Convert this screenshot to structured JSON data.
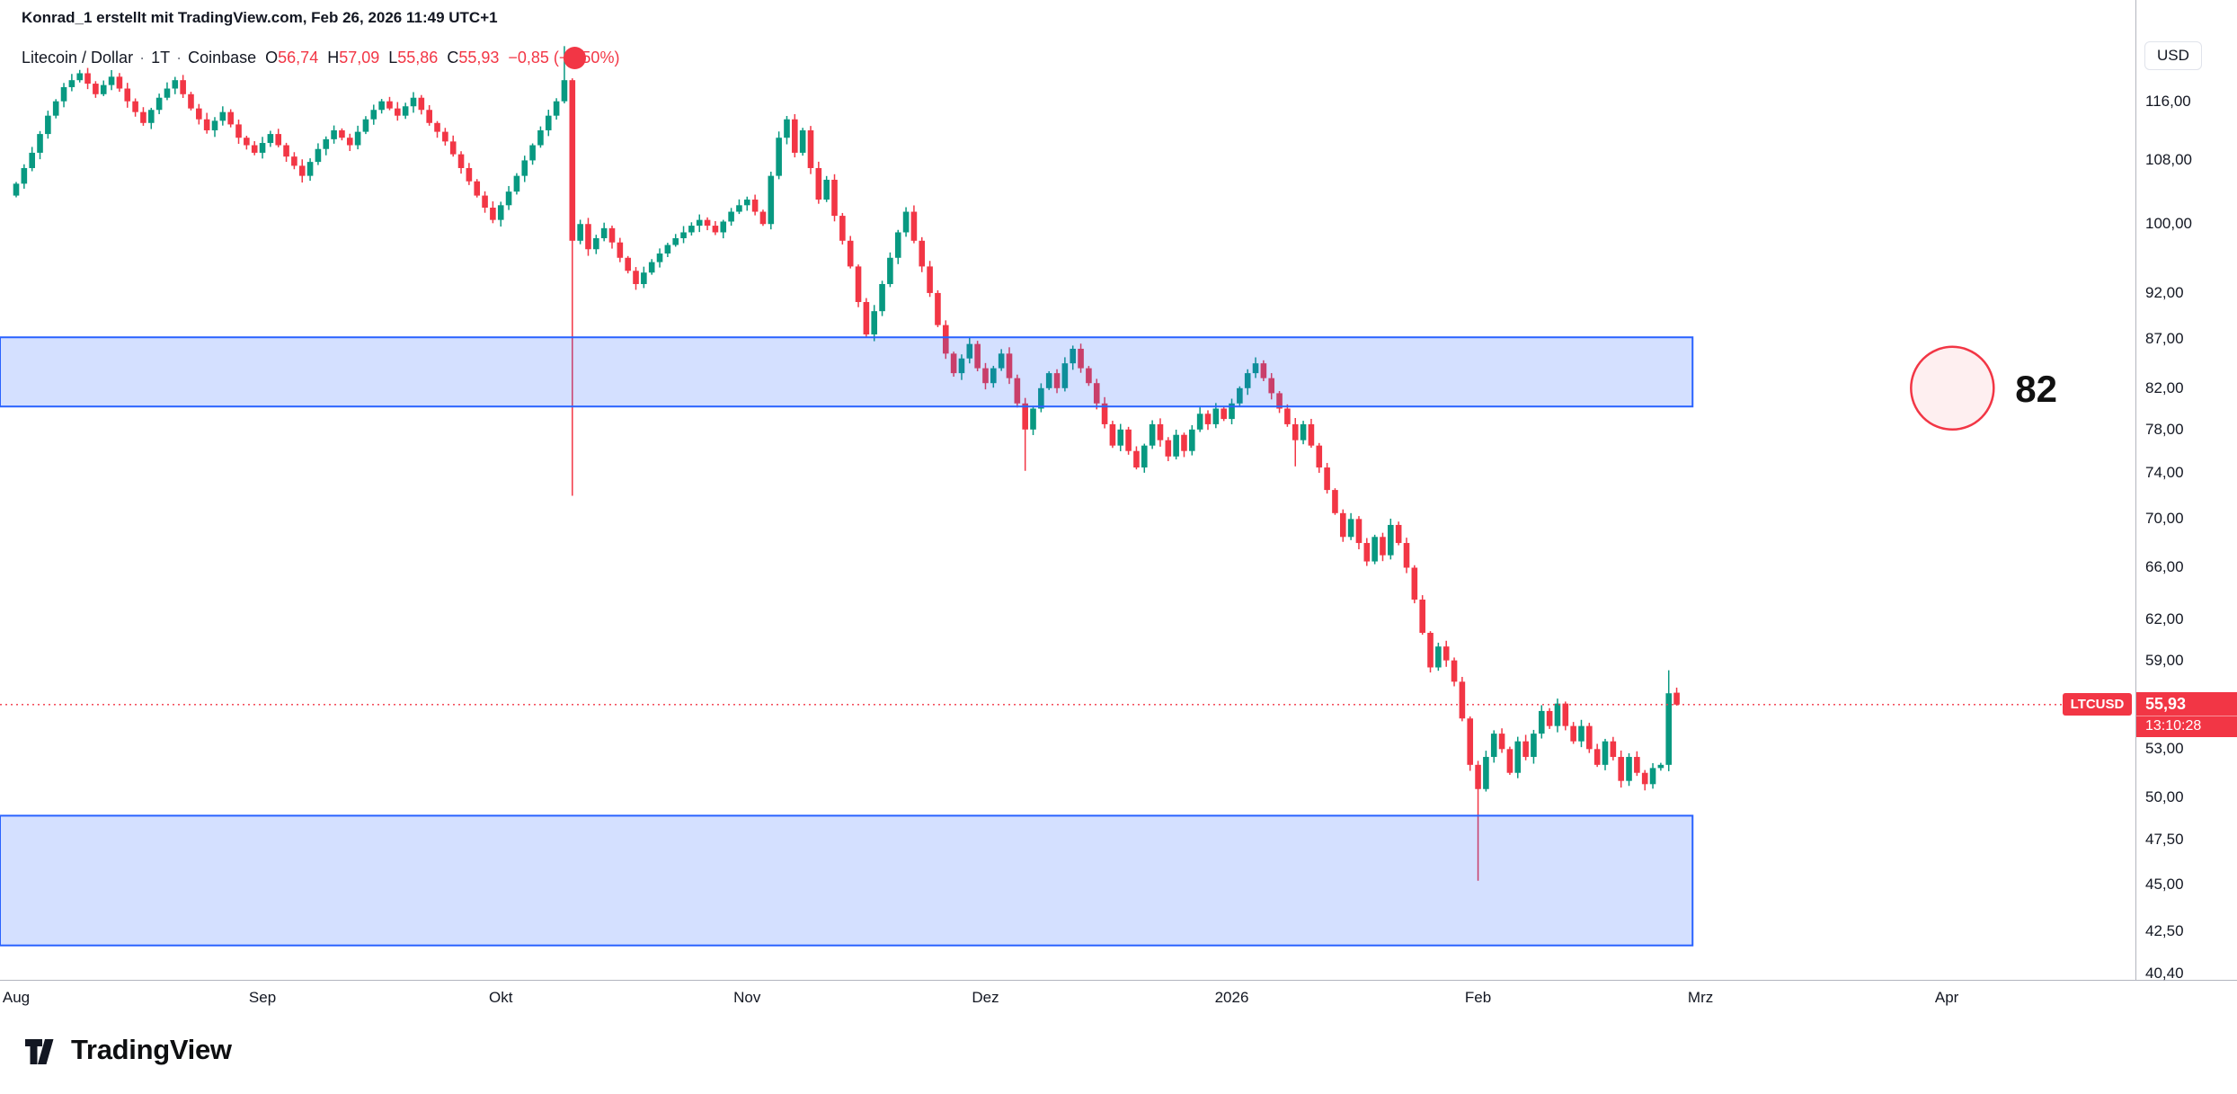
{
  "header": {
    "attribution": "Konrad_1 erstellt mit TradingView.com, Feb 26, 2026 11:49 UTC+1"
  },
  "legend": {
    "title": "Litecoin / Dollar",
    "sep": "·",
    "interval": "1T",
    "exchange": "Coinbase",
    "o_label": "O",
    "o_value": "56,74",
    "h_label": "H",
    "h_value": "57,09",
    "l_label": "L",
    "l_value": "55,86",
    "c_label": "C",
    "c_value": "55,93",
    "change_pre": "−0,85 (−",
    "change_post": "50%)"
  },
  "price_label": {
    "ticker": "LTCUSD",
    "price": "55,93",
    "countdown": "13:10:28"
  },
  "footer": {
    "brand": "TradingView"
  },
  "chart_data": {
    "type": "candlestick",
    "symbol": "Litecoin / Dollar",
    "ticker": "LTCUSD",
    "exchange": "Coinbase",
    "interval": "1T",
    "scale": "log",
    "grid": false,
    "start_date": "2025-08-01",
    "frequency": "daily",
    "last_price": 55.93,
    "last_candle": {
      "open": 56.74,
      "high": 57.09,
      "low": 55.86,
      "close": 55.93,
      "change": "−0,85 (−1,50%)"
    },
    "price_axis": {
      "currency": "USD",
      "ticks": [
        {
          "label": "116,00",
          "value": 116
        },
        {
          "label": "108,00",
          "value": 108
        },
        {
          "label": "100,00",
          "value": 100
        },
        {
          "label": "92,00",
          "value": 92
        },
        {
          "label": "87,00",
          "value": 87
        },
        {
          "label": "82,00",
          "value": 82
        },
        {
          "label": "78,00",
          "value": 78
        },
        {
          "label": "74,00",
          "value": 74
        },
        {
          "label": "70,00",
          "value": 70
        },
        {
          "label": "66,00",
          "value": 66
        },
        {
          "label": "62,00",
          "value": 62
        },
        {
          "label": "59,00",
          "value": 59
        },
        {
          "label": "53,00",
          "value": 53
        },
        {
          "label": "50,00",
          "value": 50
        },
        {
          "label": "47,50",
          "value": 47.5
        },
        {
          "label": "45,00",
          "value": 45
        },
        {
          "label": "42,50",
          "value": 42.5
        },
        {
          "label": "40,40",
          "value": 40.4
        }
      ]
    },
    "x_axis": {
      "labels": [
        {
          "text": "Aug",
          "day": 0
        },
        {
          "text": "Sep",
          "day": 31
        },
        {
          "text": "Okt",
          "day": 61
        },
        {
          "text": "Nov",
          "day": 92
        },
        {
          "text": "Dez",
          "day": 122
        },
        {
          "text": "2026",
          "day": 153
        },
        {
          "text": "Feb",
          "day": 184
        },
        {
          "text": "Mrz",
          "day": 212
        },
        {
          "text": "Apr",
          "day": 243
        }
      ]
    },
    "closes": [
      105.0,
      107.0,
      109.0,
      111.5,
      114.0,
      116.0,
      118.0,
      119.0,
      120.0,
      118.5,
      117.0,
      118.3,
      119.5,
      117.8,
      116.0,
      114.5,
      113.0,
      114.8,
      116.5,
      117.8,
      119.0,
      117.0,
      115.0,
      113.5,
      112.0,
      113.3,
      114.5,
      112.8,
      111.0,
      110.0,
      109.0,
      110.3,
      111.5,
      110.0,
      108.5,
      107.3,
      106.0,
      107.8,
      109.5,
      110.8,
      112.0,
      111.0,
      110.0,
      111.8,
      113.5,
      114.8,
      116.0,
      115.0,
      114.0,
      115.3,
      116.5,
      114.8,
      113.0,
      111.8,
      110.5,
      108.8,
      107.0,
      105.3,
      103.5,
      102.0,
      100.5,
      102.3,
      104.0,
      106.0,
      108.0,
      110.0,
      112.0,
      114.0,
      116.0,
      119.0,
      98.0,
      100.0,
      97.0,
      98.3,
      99.5,
      97.8,
      96.0,
      94.5,
      93.0,
      94.3,
      95.5,
      96.5,
      97.5,
      98.3,
      99.0,
      99.8,
      100.5,
      99.8,
      99.0,
      100.3,
      101.5,
      102.3,
      103.0,
      101.5,
      100.0,
      106.0,
      111.0,
      113.5,
      109.0,
      112.0,
      107.0,
      103.0,
      105.5,
      101.0,
      98.0,
      95.0,
      91.0,
      87.5,
      90.0,
      93.0,
      96.0,
      99.0,
      101.5,
      98.0,
      95.0,
      92.0,
      88.5,
      85.5,
      83.5,
      85.0,
      86.5,
      84.0,
      82.5,
      84.0,
      85.5,
      83.0,
      80.5,
      78.0,
      80.0,
      82.0,
      83.5,
      82.0,
      84.5,
      86.0,
      84.0,
      82.5,
      80.5,
      78.5,
      76.5,
      78.0,
      76.0,
      74.5,
      76.5,
      78.5,
      77.0,
      75.5,
      77.5,
      76.0,
      78.0,
      79.5,
      78.5,
      80.0,
      79.0,
      80.5,
      82.0,
      83.5,
      84.5,
      83.0,
      81.5,
      80.0,
      78.5,
      77.0,
      78.5,
      76.5,
      74.5,
      72.5,
      70.5,
      68.5,
      70.0,
      68.0,
      66.5,
      68.5,
      67.0,
      69.5,
      68.0,
      66.0,
      63.5,
      61.0,
      58.5,
      60.0,
      59.0,
      57.5,
      55.0,
      52.0,
      50.5,
      52.5,
      54.0,
      53.0,
      51.5,
      53.5,
      52.5,
      54.0,
      55.5,
      54.5,
      56.0,
      54.5,
      53.5,
      54.5,
      53.0,
      52.0,
      53.5,
      52.5,
      51.0,
      52.5,
      51.5,
      50.8,
      51.8,
      52.0,
      56.7,
      55.93
    ],
    "specials": {
      "69": {
        "h": 124.0
      },
      "70": {
        "l": 72.0
      },
      "127": {
        "l": 74.2
      },
      "161": {
        "l": 74.6
      },
      "184": {
        "l": 45.2
      },
      "208": {
        "h": 58.3
      },
      "209": {
        "o": 56.74,
        "h": 57.09,
        "l": 55.86
      }
    },
    "zones": [
      {
        "price_top": 87.2,
        "price_bottom": 80.2,
        "day_end": 211
      },
      {
        "price_top": 48.9,
        "price_bottom": 41.8,
        "day_end": 211
      }
    ],
    "annotation": {
      "label": "82",
      "price": 82,
      "day": 243.7,
      "radius": 46
    },
    "colors": {
      "up": "#089981",
      "down": "#F23645",
      "zone_border": "#2962FF",
      "zone_fill": "rgba(41,98,255,0.2)",
      "price_line": "#F23645",
      "annotation_stroke": "#F23645",
      "annotation_fill": "rgba(242,54,69,0.08)"
    }
  }
}
